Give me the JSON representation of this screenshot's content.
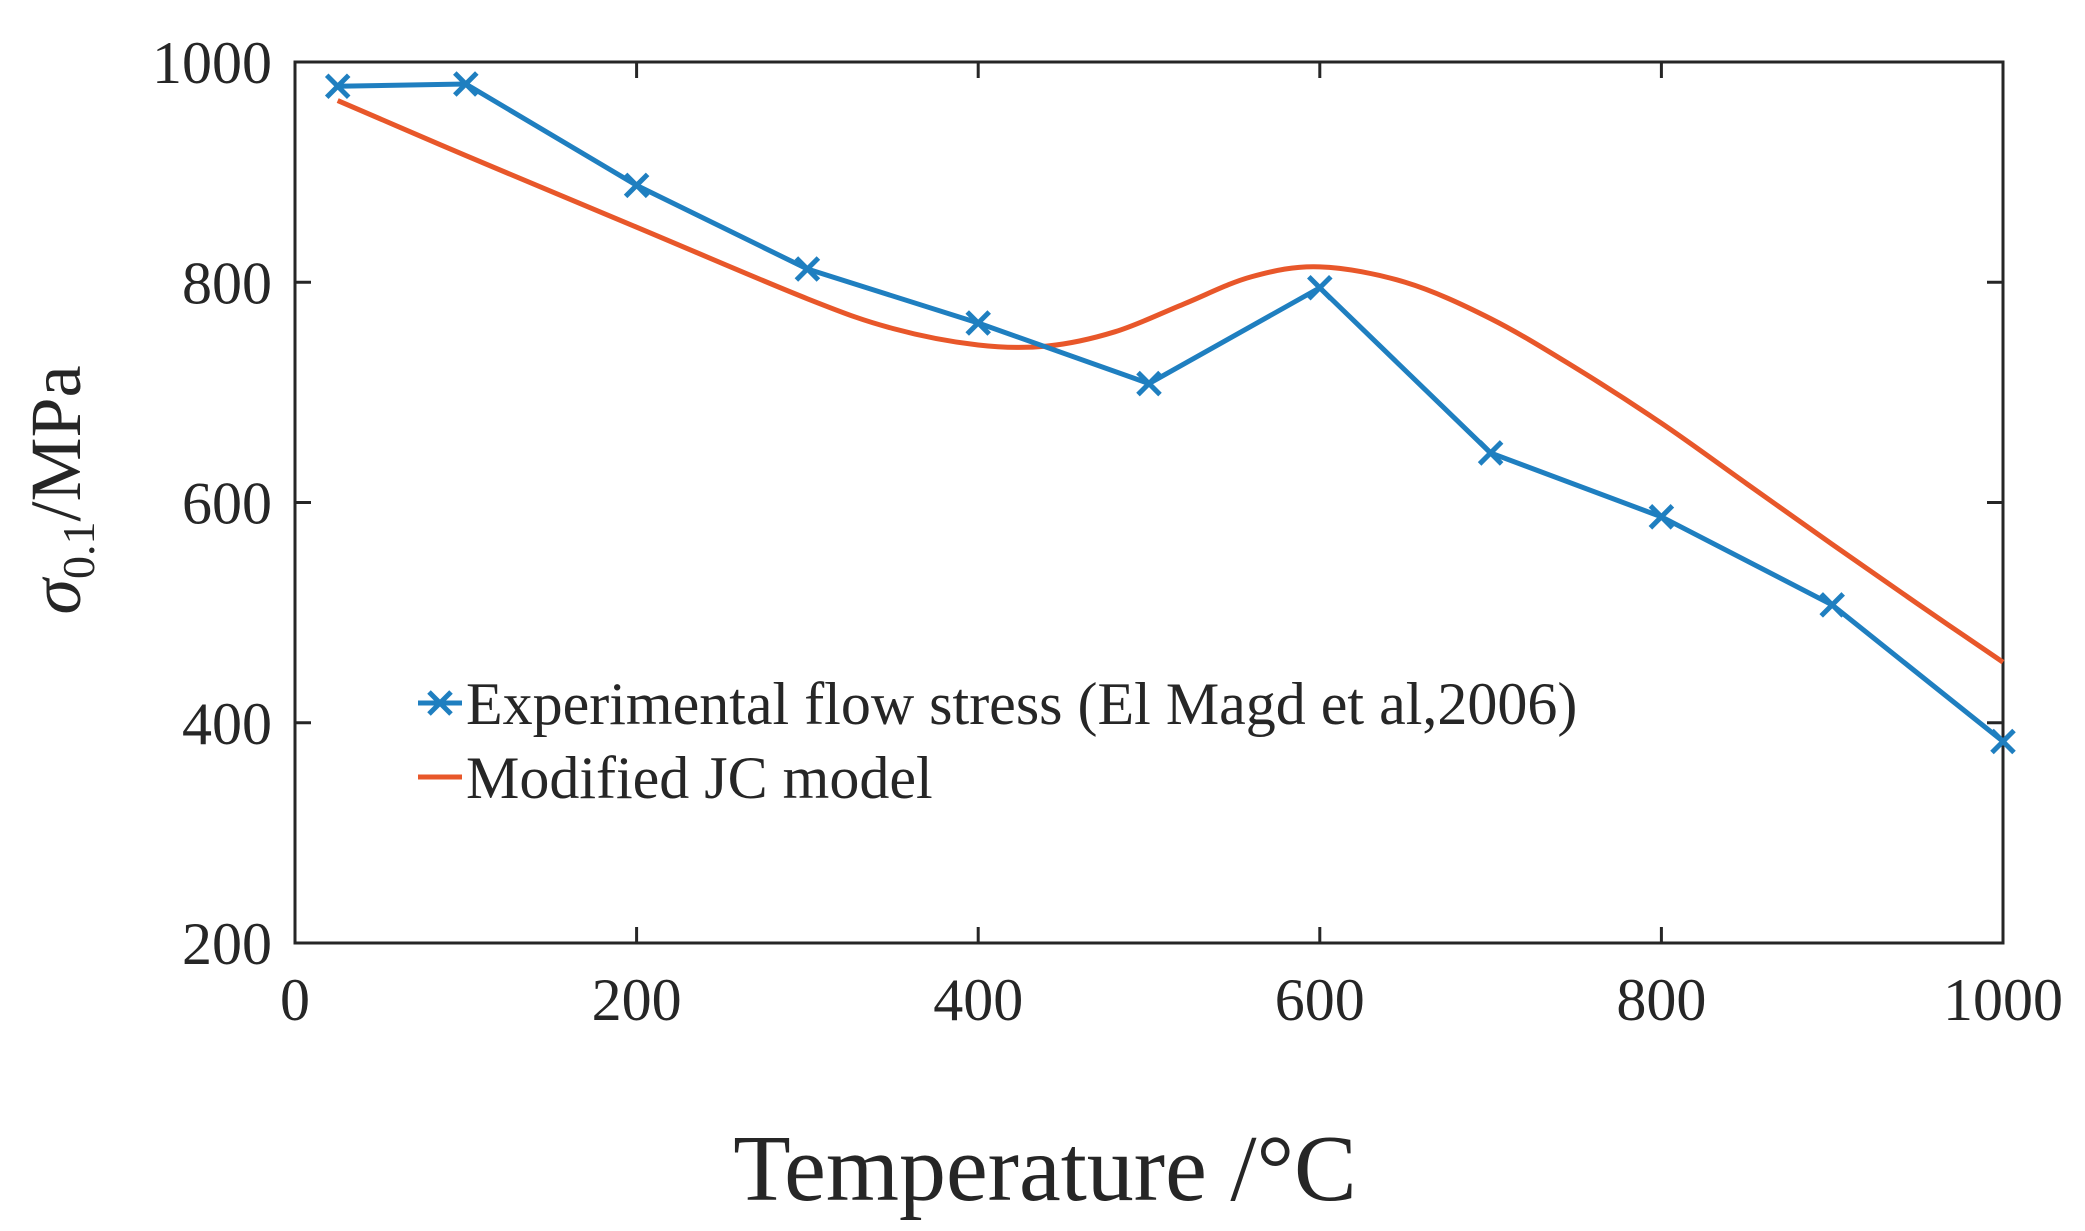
{
  "chart_data": {
    "type": "line",
    "title": "",
    "xlabel": "Temperature /°C",
    "ylabel": {
      "symbol": "σ",
      "subscript": "0.1",
      "unit": "/MPa"
    },
    "xlim": [
      0,
      1000
    ],
    "ylim": [
      200,
      1000
    ],
    "x_ticks": [
      0,
      200,
      400,
      600,
      800,
      1000
    ],
    "y_ticks": [
      200,
      400,
      600,
      800,
      1000
    ],
    "grid": false,
    "legend_position": "middle-left",
    "series": [
      {
        "name": "Experimental flow stress (El Magd et al,2006)",
        "color": "#1f7fc0",
        "marker": "x",
        "x": [
          25,
          100,
          200,
          300,
          400,
          500,
          600,
          700,
          800,
          900,
          1000
        ],
        "y": [
          978,
          980,
          888,
          812,
          763,
          708,
          795,
          645,
          587,
          507,
          383
        ]
      },
      {
        "name": "Modified JC model",
        "color": "#e8572a",
        "marker": "none",
        "x": [
          25,
          100,
          200,
          300,
          350,
          400,
          440,
          480,
          520,
          560,
          600,
          650,
          700,
          750,
          800,
          850,
          900,
          950,
          1000
        ],
        "y": [
          965,
          915,
          850,
          785,
          758,
          743,
          742,
          755,
          780,
          805,
          814,
          800,
          767,
          722,
          672,
          617,
          562,
          508,
          455
        ]
      }
    ]
  }
}
